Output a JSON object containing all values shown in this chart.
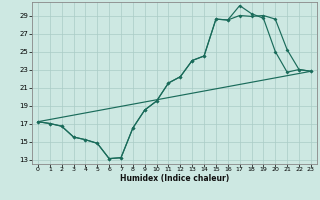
{
  "xlabel": "Humidex (Indice chaleur)",
  "background_color": "#cde8e2",
  "grid_color": "#aaccC6",
  "line_color": "#1a6b5a",
  "xlim": [
    -0.5,
    23.5
  ],
  "ylim": [
    12.5,
    30.5
  ],
  "yticks": [
    13,
    15,
    17,
    19,
    21,
    23,
    25,
    27,
    29
  ],
  "xticks": [
    0,
    1,
    2,
    3,
    4,
    5,
    6,
    7,
    8,
    9,
    10,
    11,
    12,
    13,
    14,
    15,
    16,
    17,
    18,
    19,
    20,
    21,
    22,
    23
  ],
  "line1_x": [
    0,
    1,
    2,
    3,
    4,
    5,
    6,
    7,
    8,
    9,
    10,
    11,
    12,
    13,
    14,
    15,
    16,
    17,
    18,
    19,
    20,
    21,
    22,
    23
  ],
  "line1_y": [
    17.2,
    17.0,
    16.7,
    15.5,
    15.2,
    14.8,
    13.1,
    13.2,
    16.5,
    18.5,
    19.5,
    21.5,
    22.2,
    24.0,
    24.5,
    28.6,
    28.5,
    30.1,
    29.2,
    28.7,
    25.0,
    22.7,
    23.0,
    22.8
  ],
  "line2_x": [
    0,
    1,
    2,
    3,
    4,
    5,
    6,
    7,
    8,
    9,
    10,
    11,
    12,
    13,
    14,
    15,
    16,
    17,
    18,
    19,
    20,
    21,
    22,
    23
  ],
  "line2_y": [
    17.2,
    17.0,
    16.7,
    15.5,
    15.2,
    14.8,
    13.1,
    13.2,
    16.5,
    18.5,
    19.5,
    21.5,
    22.2,
    24.0,
    24.5,
    28.6,
    28.5,
    29.0,
    28.9,
    29.0,
    28.6,
    25.2,
    23.0,
    22.8
  ],
  "line3_x": [
    0,
    23
  ],
  "line3_y": [
    17.2,
    22.8
  ]
}
